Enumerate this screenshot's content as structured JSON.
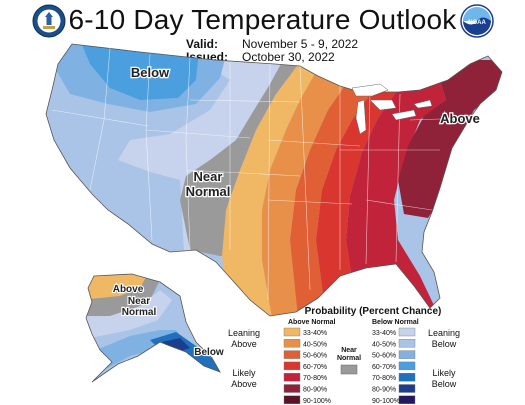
{
  "header": {
    "title": "6-10 Day Temperature Outlook",
    "valid_label": "Valid:",
    "valid_value": "November 5 - 9, 2022",
    "issued_label": "Issued:",
    "issued_value": "October 30, 2022"
  },
  "map": {
    "region_labels": {
      "below_conus": "Below",
      "near_normal_line1": "Near",
      "near_normal_line2": "Normal",
      "above_conus": "Above",
      "ak_above": "Above",
      "ak_near_line1": "Near",
      "ak_near_line2": "Normal",
      "ak_below": "Below"
    }
  },
  "legend": {
    "title": "Probability (Percent Chance)",
    "above_header": "Above Normal",
    "below_header": "Below Normal",
    "near_header_line1": "Near",
    "near_header_line2": "Normal",
    "leaning_above_1": "Leaning",
    "leaning_above_2": "Above",
    "likely_above_1": "Likely",
    "likely_above_2": "Above",
    "leaning_below_1": "Leaning",
    "leaning_below_2": "Below",
    "likely_below_1": "Likely",
    "likely_below_2": "Below",
    "above": [
      {
        "range": "33-40%",
        "color": "#F0B765"
      },
      {
        "range": "40-50%",
        "color": "#E8904A"
      },
      {
        "range": "50-60%",
        "color": "#E15F34"
      },
      {
        "range": "60-70%",
        "color": "#D9362F"
      },
      {
        "range": "70-80%",
        "color": "#C1243A"
      },
      {
        "range": "80-90%",
        "color": "#8F2239"
      },
      {
        "range": "90-100%",
        "color": "#5A1226"
      }
    ],
    "below": [
      {
        "range": "33-40%",
        "color": "#C7D3EC"
      },
      {
        "range": "40-50%",
        "color": "#A9C4E6"
      },
      {
        "range": "50-60%",
        "color": "#7FB2E3"
      },
      {
        "range": "60-70%",
        "color": "#4C9FDF"
      },
      {
        "range": "70-80%",
        "color": "#1F70BF"
      },
      {
        "range": "80-90%",
        "color": "#1B3E8E"
      },
      {
        "range": "90-100%",
        "color": "#22195E"
      }
    ],
    "near_color": "#9A9A9A"
  },
  "logos": {
    "left": "doc-seal-icon",
    "right": "noaa-logo-icon",
    "noaa_text": "NOAA"
  }
}
